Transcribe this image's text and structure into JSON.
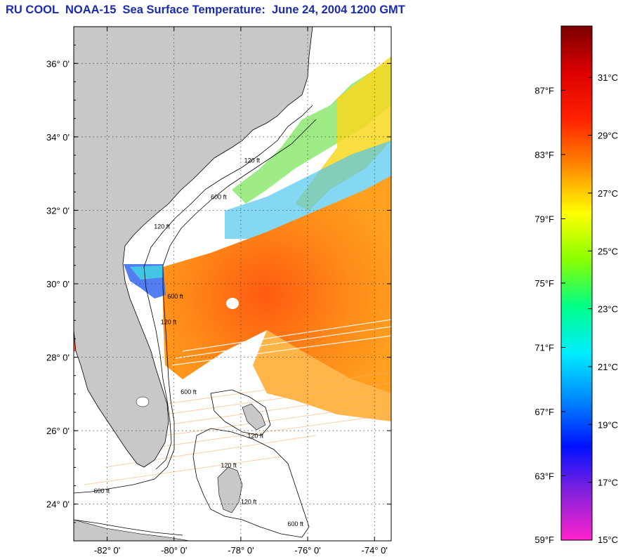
{
  "title": "RU COOL  NOAA-15  Sea Surface Temperature:  June 24, 2004 1200 GMT",
  "map": {
    "lat_range": [
      23.0,
      37.0
    ],
    "lon_range": [
      -83.0,
      -73.5
    ],
    "lat_ticks": [
      {
        "value": 36,
        "label": "36° 0'"
      },
      {
        "value": 34,
        "label": "34° 0'"
      },
      {
        "value": 32,
        "label": "32° 0'"
      },
      {
        "value": 30,
        "label": "30° 0'"
      },
      {
        "value": 28,
        "label": "28° 0'"
      },
      {
        "value": 26,
        "label": "26° 0'"
      },
      {
        "value": 24,
        "label": "24° 0'"
      }
    ],
    "lon_ticks": [
      {
        "value": -82,
        "label": "-82° 0'"
      },
      {
        "value": -80,
        "label": "-80° 0'"
      },
      {
        "value": -78,
        "label": "-78° 0'"
      },
      {
        "value": -76,
        "label": "-76° 0'"
      },
      {
        "value": -74,
        "label": "-74° 0'"
      }
    ],
    "grid": "dotted",
    "land_color": "#c8c8c8",
    "contour_labels": [
      {
        "text": "120 ft",
        "lon": -77.9,
        "lat": 33.3
      },
      {
        "text": "600 ft",
        "lon": -78.9,
        "lat": 32.3
      },
      {
        "text": "120 ft",
        "lon": -80.6,
        "lat": 31.5
      },
      {
        "text": "600 ft",
        "lon": -80.2,
        "lat": 29.6
      },
      {
        "text": "120 ft",
        "lon": -80.4,
        "lat": 28.9
      },
      {
        "text": "600 ft",
        "lon": -79.8,
        "lat": 27.0
      },
      {
        "text": "120 ft",
        "lon": -77.8,
        "lat": 25.8
      },
      {
        "text": "120 ft",
        "lon": -78.6,
        "lat": 25.0
      },
      {
        "text": "600 ft",
        "lon": -82.4,
        "lat": 24.3
      },
      {
        "text": "120 ft",
        "lon": -78.0,
        "lat": 24.0
      },
      {
        "text": "600 ft",
        "lon": -76.6,
        "lat": 23.4
      }
    ]
  },
  "colorbar": {
    "f_range": [
      59,
      91
    ],
    "f_labels": [
      "87°F",
      "83°F",
      "79°F",
      "75°F",
      "71°F",
      "67°F",
      "63°F",
      "59°F"
    ],
    "f_values": [
      87,
      83,
      79,
      75,
      71,
      67,
      63,
      59
    ],
    "c_labels": [
      "31°C",
      "29°C",
      "27°C",
      "25°C",
      "23°C",
      "21°C",
      "19°C",
      "17°C",
      "15°C"
    ],
    "c_values": [
      31,
      29,
      27,
      25,
      23,
      21,
      19,
      17,
      15
    ],
    "colors": [
      "#ff22cc",
      "#8822dd",
      "#0011ff",
      "#0088ff",
      "#00eeff",
      "#00ff88",
      "#88ff00",
      "#ffff00",
      "#ff8800",
      "#ff2200",
      "#dd0000",
      "#7a0000"
    ]
  },
  "sst_colors": {
    "warm": "#ff7a1a",
    "mid": "#ffb020",
    "cool": "#30d0ff",
    "cold": "#3050ff",
    "green": "#60e860"
  }
}
